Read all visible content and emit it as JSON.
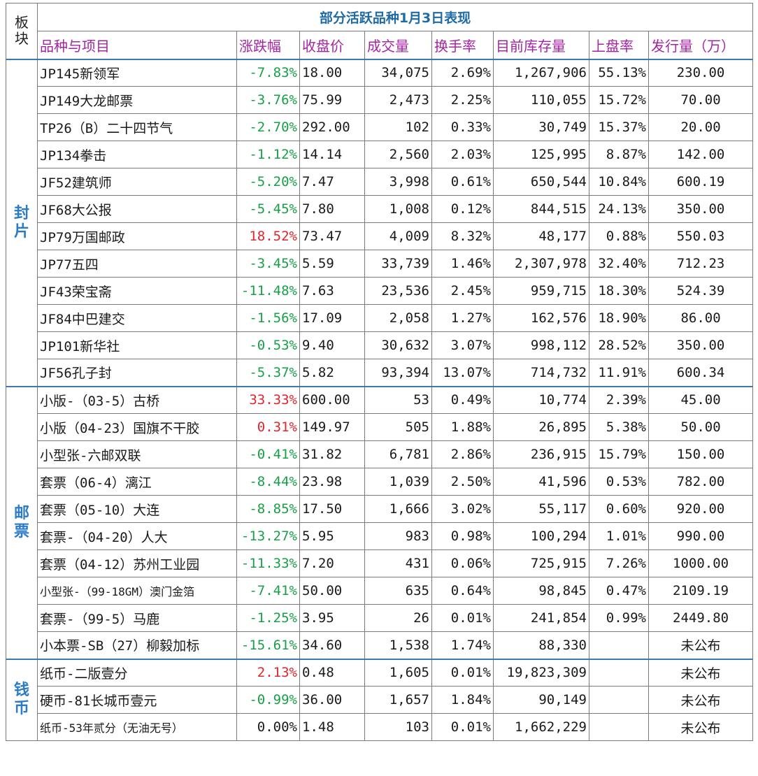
{
  "table": {
    "corner_label": "板块",
    "title": "部分活跃品种1月3日表现",
    "headers": [
      "品种与项目",
      "涨跌幅",
      "收盘价",
      "成交量",
      "换手率",
      "目前库存量",
      "上盘率",
      "发行量（万）"
    ],
    "colors": {
      "title": "#1f6ba5",
      "header": "#a424a4",
      "section": "#2b7bc7",
      "down": "#17a047",
      "up": "#e0262c"
    },
    "sections": [
      {
        "label": "封片",
        "rows": [
          {
            "name": "JP145新领军",
            "change": "-7.83%",
            "dir": "neg",
            "close": "18.00",
            "volume": "34,075",
            "turnover": "2.69%",
            "stock": "1,267,906",
            "rate": "55.13%",
            "issue": "230.00"
          },
          {
            "name": "JP149大龙邮票",
            "change": "-3.76%",
            "dir": "neg",
            "close": "75.99",
            "volume": "2,473",
            "turnover": "2.25%",
            "stock": "110,055",
            "rate": "15.72%",
            "issue": "70.00"
          },
          {
            "name": "TP26（B）二十四节气",
            "change": "-2.70%",
            "dir": "neg",
            "close": "292.00",
            "volume": "102",
            "turnover": "0.33%",
            "stock": "30,749",
            "rate": "15.37%",
            "issue": "20.00"
          },
          {
            "name": "JP134拳击",
            "change": "-1.12%",
            "dir": "neg",
            "close": "14.14",
            "volume": "2,560",
            "turnover": "2.03%",
            "stock": "125,995",
            "rate": "8.87%",
            "issue": "142.00"
          },
          {
            "name": "JF52建筑师",
            "change": "-5.20%",
            "dir": "neg",
            "close": "7.47",
            "volume": "3,998",
            "turnover": "0.61%",
            "stock": "650,544",
            "rate": "10.84%",
            "issue": "600.19"
          },
          {
            "name": "JF68大公报",
            "change": "-5.45%",
            "dir": "neg",
            "close": "7.80",
            "volume": "1,008",
            "turnover": "0.12%",
            "stock": "844,515",
            "rate": "24.13%",
            "issue": "350.00"
          },
          {
            "name": "JP79万国邮政",
            "change": "18.52%",
            "dir": "pos",
            "close": "73.47",
            "volume": "4,009",
            "turnover": "8.32%",
            "stock": "48,177",
            "rate": "0.88%",
            "issue": "550.03"
          },
          {
            "name": "JP77五四",
            "change": "-3.45%",
            "dir": "neg",
            "close": "5.59",
            "volume": "33,739",
            "turnover": "1.46%",
            "stock": "2,307,978",
            "rate": "32.40%",
            "issue": "712.23"
          },
          {
            "name": "JF43荣宝斋",
            "change": "-11.48%",
            "dir": "neg",
            "close": "7.63",
            "volume": "23,536",
            "turnover": "2.45%",
            "stock": "959,715",
            "rate": "18.30%",
            "issue": "524.39"
          },
          {
            "name": "JF84中巴建交",
            "change": "-1.56%",
            "dir": "neg",
            "close": "17.09",
            "volume": "2,058",
            "turnover": "1.27%",
            "stock": "162,576",
            "rate": "18.90%",
            "issue": "86.00"
          },
          {
            "name": "JP101新华社",
            "change": "-0.53%",
            "dir": "neg",
            "close": "9.40",
            "volume": "30,632",
            "turnover": "3.07%",
            "stock": "998,112",
            "rate": "28.52%",
            "issue": "350.00"
          },
          {
            "name": "JF56孔子封",
            "change": "-5.37%",
            "dir": "neg",
            "close": "5.82",
            "volume": "93,394",
            "turnover": "13.07%",
            "stock": "714,732",
            "rate": "11.91%",
            "issue": "600.34"
          }
        ]
      },
      {
        "label": "邮票",
        "rows": [
          {
            "name": "小版-（03-5）古桥",
            "change": "33.33%",
            "dir": "pos",
            "close": "600.00",
            "volume": "53",
            "turnover": "0.49%",
            "stock": "10,774",
            "rate": "2.39%",
            "issue": "45.00"
          },
          {
            "name": "小版（04-23）国旗不干胶",
            "change": "0.31%",
            "dir": "pos",
            "close": "149.97",
            "volume": "505",
            "turnover": "1.88%",
            "stock": "26,895",
            "rate": "5.38%",
            "issue": "50.00"
          },
          {
            "name": "小型张-六邮双联",
            "change": "-0.41%",
            "dir": "neg",
            "close": "31.82",
            "volume": "6,781",
            "turnover": "2.86%",
            "stock": "236,915",
            "rate": "15.79%",
            "issue": "150.00"
          },
          {
            "name": "套票（06-4）漓江",
            "change": "-8.44%",
            "dir": "neg",
            "close": "23.98",
            "volume": "1,039",
            "turnover": "2.50%",
            "stock": "41,596",
            "rate": "0.53%",
            "issue": "782.00"
          },
          {
            "name": "套票（05-10）大连",
            "change": "-8.85%",
            "dir": "neg",
            "close": "17.50",
            "volume": "1,666",
            "turnover": "3.02%",
            "stock": "55,117",
            "rate": "0.60%",
            "issue": "920.00"
          },
          {
            "name": "套票-（04-20）人大",
            "change": "-13.27%",
            "dir": "neg",
            "close": "5.95",
            "volume": "983",
            "turnover": "0.98%",
            "stock": "100,294",
            "rate": "1.01%",
            "issue": "990.00"
          },
          {
            "name": "套票（04-12）苏州工业园",
            "change": "-11.33%",
            "dir": "neg",
            "close": "7.20",
            "volume": "431",
            "turnover": "0.06%",
            "stock": "725,915",
            "rate": "7.26%",
            "issue": "1000.00"
          },
          {
            "name": "小型张-（99-18GM）澳门金箔",
            "change": "-7.41%",
            "dir": "neg",
            "close": "50.00",
            "volume": "635",
            "turnover": "0.64%",
            "stock": "98,845",
            "rate": "0.47%",
            "issue": "2109.19",
            "small": true
          },
          {
            "name": "套票-（99-5）马鹿",
            "change": "-1.25%",
            "dir": "neg",
            "close": "3.95",
            "volume": "26",
            "turnover": "0.01%",
            "stock": "241,854",
            "rate": "0.99%",
            "issue": "2449.80"
          },
          {
            "name": "小本票-SB（27）柳毅加标",
            "change": "-15.61%",
            "dir": "neg",
            "close": "34.60",
            "volume": "1,538",
            "turnover": "1.74%",
            "stock": "88,330",
            "rate": "",
            "issue": "未公布"
          }
        ]
      },
      {
        "label": "钱币",
        "rows": [
          {
            "name": "纸币-二版壹分",
            "change": "2.13%",
            "dir": "pos",
            "close": "0.48",
            "volume": "1,605",
            "turnover": "0.01%",
            "stock": "19,823,309",
            "rate": "",
            "issue": "未公布"
          },
          {
            "name": "硬币-81长城币壹元",
            "change": "-0.99%",
            "dir": "neg",
            "close": "36.00",
            "volume": "1,657",
            "turnover": "1.84%",
            "stock": "90,149",
            "rate": "",
            "issue": "未公布"
          },
          {
            "name": "纸币-53年贰分（无油无号）",
            "change": "0.00%",
            "dir": "zero",
            "close": "1.48",
            "volume": "103",
            "turnover": "0.01%",
            "stock": "1,662,229",
            "rate": "",
            "issue": "未公布",
            "small": true
          }
        ]
      }
    ]
  }
}
